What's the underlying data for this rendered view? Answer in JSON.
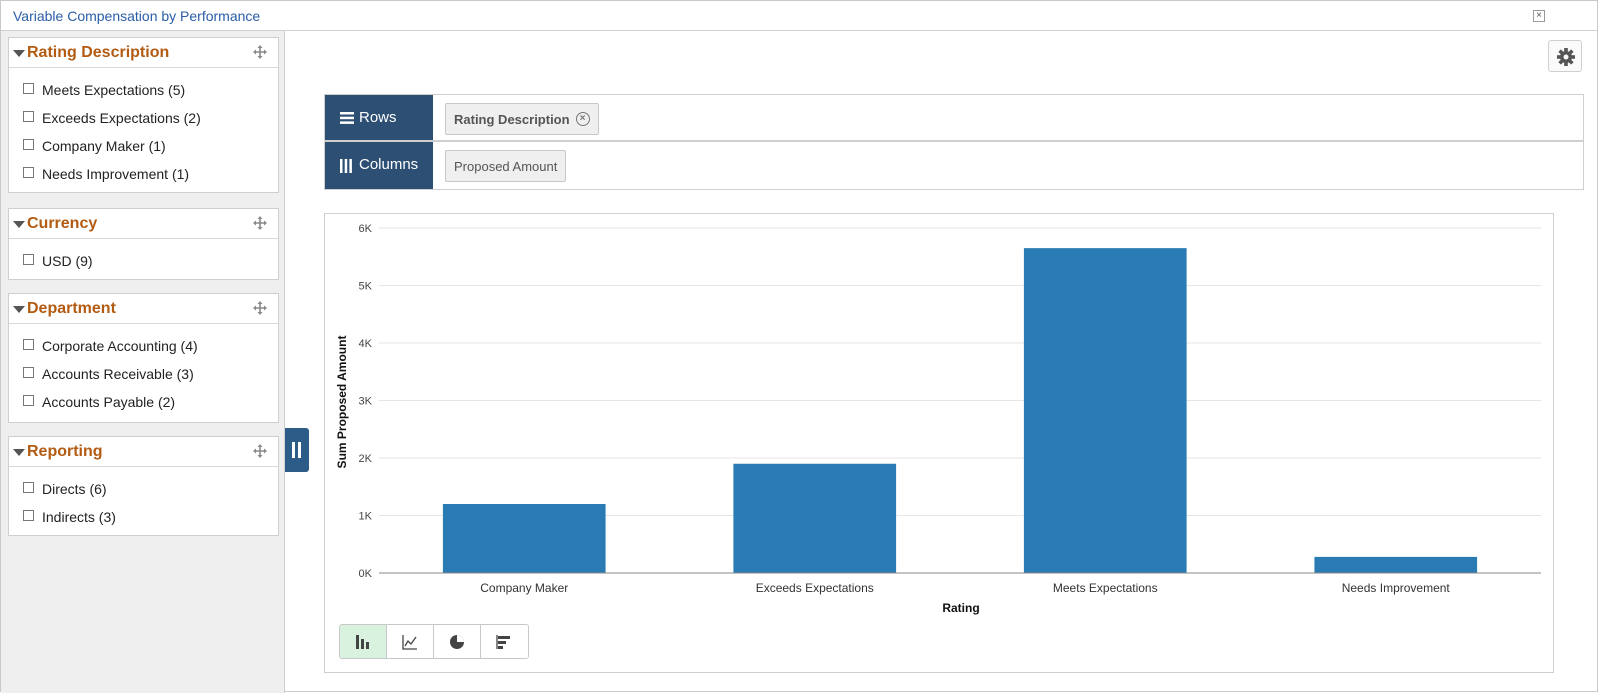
{
  "window": {
    "title": "Variable Compensation by Performance",
    "close_label": "×"
  },
  "facets": [
    {
      "title": "Rating Description",
      "items": [
        "Meets Expectations (5)",
        "Exceeds Expectations (2)",
        "Company Maker (1)",
        "Needs Improvement (1)"
      ]
    },
    {
      "title": "Currency",
      "items": [
        "USD (9)"
      ]
    },
    {
      "title": "Department",
      "items": [
        "Corporate Accounting (4)",
        "Accounts Receivable (3)",
        "Accounts Payable (2)"
      ]
    },
    {
      "title": "Reporting",
      "items": [
        "Directs (6)",
        "Indirects (3)"
      ]
    }
  ],
  "pivot": {
    "rows_label": "Rows",
    "rows_chip": "Rating Description",
    "columns_label": "Columns",
    "columns_chip": "Proposed Amount"
  },
  "chart_data": {
    "type": "bar",
    "categories": [
      "Company Maker",
      "Exceeds Expectations",
      "Meets Expectations",
      "Needs Improvement"
    ],
    "values": [
      1200,
      1900,
      5650,
      280
    ],
    "xlabel": "Rating",
    "ylabel": "Sum Proposed Amount",
    "ylim": [
      0,
      6000
    ],
    "yticks": [
      0,
      1000,
      2000,
      3000,
      4000,
      5000,
      6000
    ],
    "ytick_labels": [
      "0K",
      "1K",
      "2K",
      "3K",
      "4K",
      "5K",
      "6K"
    ],
    "grid": true,
    "bar_color": "#2a7bb4"
  },
  "chart_types": [
    "bar-chart-icon",
    "line-chart-icon",
    "pie-chart-icon",
    "horizontal-bar-chart-icon"
  ],
  "colors": {
    "accent": "#2d4f73",
    "facet_title": "#b35b12",
    "title": "#2a5ea8"
  }
}
